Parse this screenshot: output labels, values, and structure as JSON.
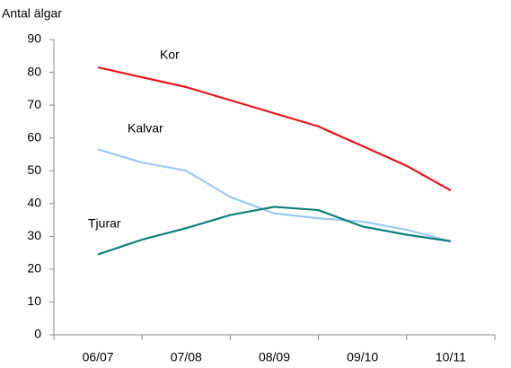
{
  "chart_data": {
    "type": "line",
    "y_label": "Antal älgar",
    "categories": [
      "06/07",
      null,
      "07/08",
      null,
      "08/09",
      null,
      "09/10",
      null,
      "10/11"
    ],
    "series": [
      {
        "name": "Kor",
        "color": "#e8151b",
        "values": [
          81.5,
          78.5,
          75.5,
          71.5,
          67.5,
          63.5,
          57.5,
          51.5,
          44
        ]
      },
      {
        "name": "Kalvar",
        "color": "#9dc9f5",
        "values": [
          56.5,
          52.5,
          50,
          42,
          37,
          35.5,
          34.5,
          32,
          28.5
        ]
      },
      {
        "name": "Tjurar",
        "color": "#0f7f7a",
        "values": [
          24.5,
          29,
          32.5,
          36.5,
          39,
          38,
          33,
          30.5,
          28.5
        ]
      }
    ],
    "ylim": [
      0,
      90
    ],
    "yticks": [
      0,
      10,
      20,
      30,
      40,
      50,
      60,
      70,
      80,
      90
    ],
    "grid": false
  }
}
